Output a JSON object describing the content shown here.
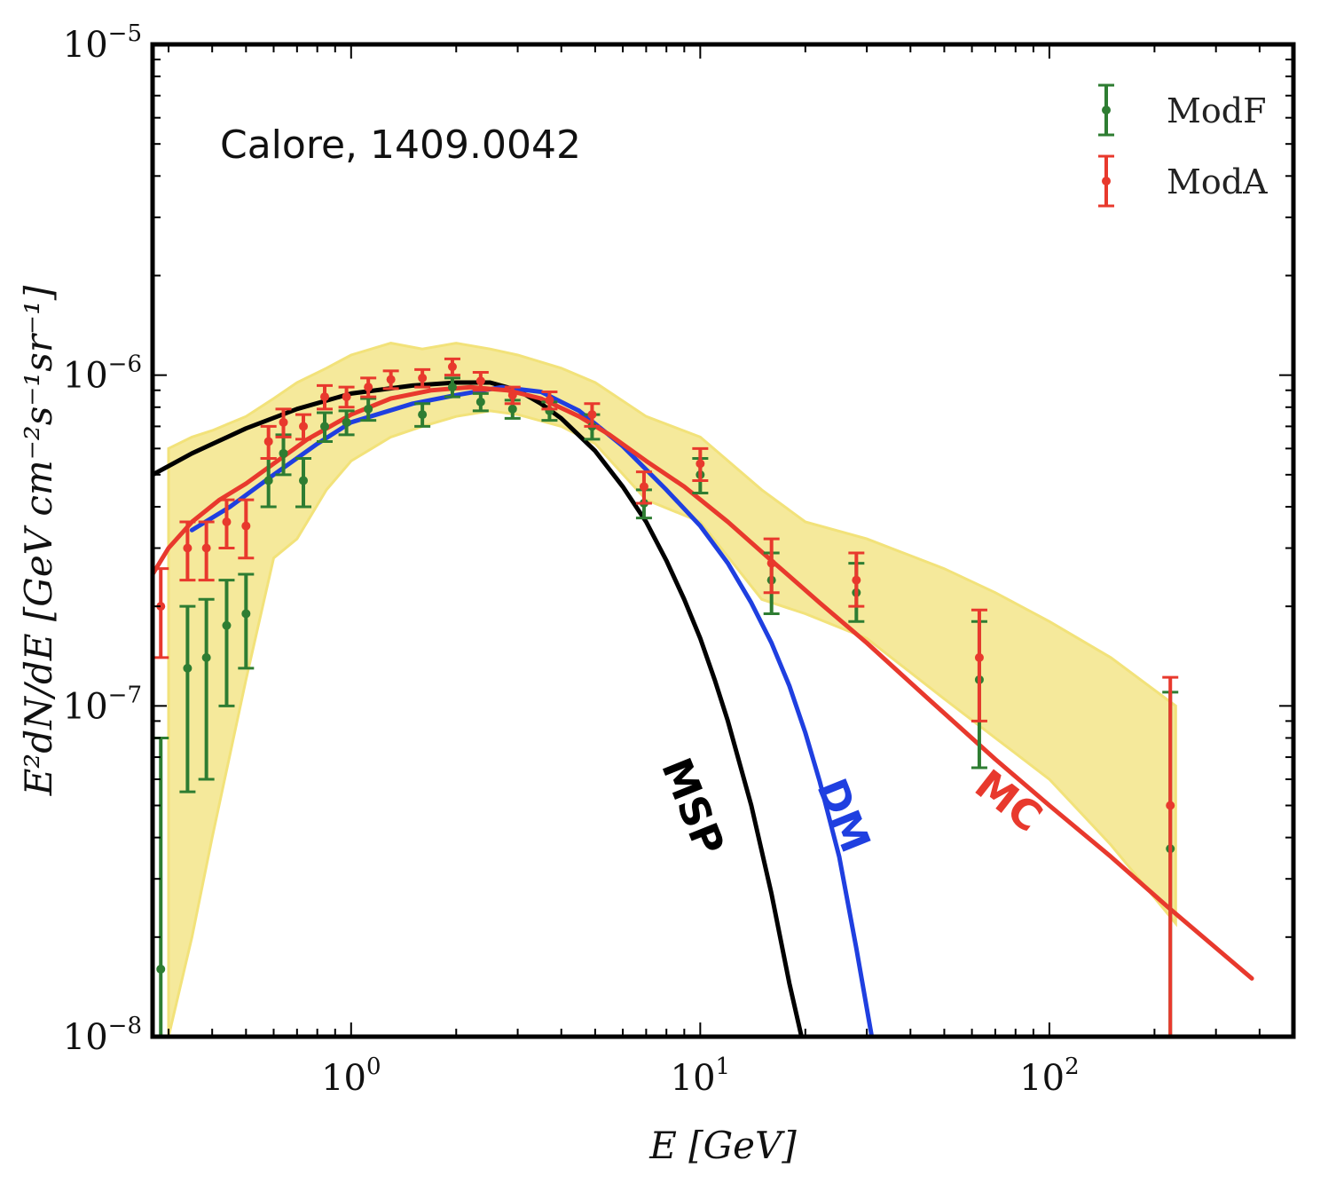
{
  "chart_data": {
    "type": "scatter",
    "title": "",
    "annotation": "Calore, 1409.0042",
    "xlabel": "E [GeV]",
    "ylabel": "E²dN/dE [GeV cm⁻²s⁻¹sr⁻¹]",
    "xscale": "log",
    "yscale": "log",
    "xlim": [
      0.27,
      500
    ],
    "ylim": [
      1e-08,
      1e-05
    ],
    "x_ticks": [
      {
        "value": 1,
        "base": "10",
        "exp": "0"
      },
      {
        "value": 10,
        "base": "10",
        "exp": "1"
      },
      {
        "value": 100,
        "base": "10",
        "exp": "2"
      }
    ],
    "y_ticks": [
      {
        "value": 1e-08,
        "base": "10",
        "exp": "−8"
      },
      {
        "value": 1e-07,
        "base": "10",
        "exp": "−7"
      },
      {
        "value": 1e-06,
        "base": "10",
        "exp": "−6"
      },
      {
        "value": 1e-05,
        "base": "10",
        "exp": "−5"
      }
    ],
    "legend": {
      "placement": "top-right",
      "entries": [
        {
          "label": "ModF",
          "color": "#2e7d32"
        },
        {
          "label": "ModA",
          "color": "#e8392d"
        }
      ]
    },
    "band_color": "#f2e27a",
    "band": {
      "x": [
        0.3,
        0.35,
        0.4,
        0.5,
        0.6,
        0.7,
        0.85,
        1.0,
        1.3,
        1.6,
        2.0,
        2.5,
        3.0,
        4.0,
        5.0,
        7.0,
        10,
        15,
        20,
        30,
        50,
        70,
        100,
        150,
        230
      ],
      "upper": [
        6e-07,
        6.5e-07,
        6.8e-07,
        7.5e-07,
        8.5e-07,
        9.5e-07,
        1.05e-06,
        1.15e-06,
        1.25e-06,
        1.2e-06,
        1.25e-06,
        1.2e-06,
        1.15e-06,
        1.05e-06,
        9.5e-07,
        7.5e-07,
        6.5e-07,
        4.5e-07,
        3.6e-07,
        3.2e-07,
        2.6e-07,
        2.2e-07,
        1.8e-07,
        1.4e-07,
        1e-07
      ],
      "lower": [
        1e-08,
        2e-08,
        4e-08,
        1.2e-07,
        2.8e-07,
        3.2e-07,
        4.5e-07,
        5.5e-07,
        6.5e-07,
        7e-07,
        7.5e-07,
        7.8e-07,
        7.6e-07,
        7e-07,
        6.2e-07,
        4.2e-07,
        3.6e-07,
        2.1e-07,
        1.9e-07,
        1.6e-07,
        1.05e-07,
        8e-08,
        6e-08,
        3.8e-08,
        2.2e-08
      ]
    },
    "series": [
      {
        "name": "ModF",
        "color": "#2e7d32",
        "points": [
          {
            "x": 0.285,
            "y": 1.6e-08,
            "lo": 1e-08,
            "hi": 8e-08
          },
          {
            "x": 0.34,
            "y": 1.3e-07,
            "lo": 5.5e-08,
            "hi": 2e-07
          },
          {
            "x": 0.385,
            "y": 1.4e-07,
            "lo": 6e-08,
            "hi": 2.1e-07
          },
          {
            "x": 0.44,
            "y": 1.75e-07,
            "lo": 1e-07,
            "hi": 2.4e-07
          },
          {
            "x": 0.5,
            "y": 1.9e-07,
            "lo": 1.3e-07,
            "hi": 2.5e-07
          },
          {
            "x": 0.58,
            "y": 4.8e-07,
            "lo": 4e-07,
            "hi": 5.6e-07
          },
          {
            "x": 0.64,
            "y": 5.8e-07,
            "lo": 5e-07,
            "hi": 6.6e-07
          },
          {
            "x": 0.73,
            "y": 4.8e-07,
            "lo": 4e-07,
            "hi": 5.6e-07
          },
          {
            "x": 0.84,
            "y": 7e-07,
            "lo": 6.3e-07,
            "hi": 7.7e-07
          },
          {
            "x": 0.97,
            "y": 7.2e-07,
            "lo": 6.6e-07,
            "hi": 7.8e-07
          },
          {
            "x": 1.12,
            "y": 7.9e-07,
            "lo": 7.3e-07,
            "hi": 8.5e-07
          },
          {
            "x": 1.6,
            "y": 7.6e-07,
            "lo": 7e-07,
            "hi": 8.2e-07
          },
          {
            "x": 1.95,
            "y": 9.2e-07,
            "lo": 8.6e-07,
            "hi": 9.8e-07
          },
          {
            "x": 2.35,
            "y": 8.3e-07,
            "lo": 7.8e-07,
            "hi": 8.8e-07
          },
          {
            "x": 2.9,
            "y": 7.9e-07,
            "lo": 7.4e-07,
            "hi": 8.4e-07
          },
          {
            "x": 3.7,
            "y": 7.8e-07,
            "lo": 7.3e-07,
            "hi": 8.3e-07
          },
          {
            "x": 4.9,
            "y": 7e-07,
            "lo": 6.4e-07,
            "hi": 7.6e-07
          },
          {
            "x": 6.9,
            "y": 4.1e-07,
            "lo": 3.7e-07,
            "hi": 4.5e-07
          },
          {
            "x": 10.0,
            "y": 5e-07,
            "lo": 4.4e-07,
            "hi": 5.6e-07
          },
          {
            "x": 16.0,
            "y": 2.4e-07,
            "lo": 1.9e-07,
            "hi": 2.9e-07
          },
          {
            "x": 28.0,
            "y": 2.2e-07,
            "lo": 1.8e-07,
            "hi": 2.7e-07
          },
          {
            "x": 63.0,
            "y": 1.2e-07,
            "lo": 6.5e-08,
            "hi": 1.8e-07
          },
          {
            "x": 222.0,
            "y": 3.7e-08,
            "lo": 1e-08,
            "hi": 1.1e-07
          }
        ]
      },
      {
        "name": "ModA",
        "color": "#e8392d",
        "points": [
          {
            "x": 0.285,
            "y": 2e-07,
            "lo": 1.4e-07,
            "hi": 2.6e-07
          },
          {
            "x": 0.34,
            "y": 3e-07,
            "lo": 2.4e-07,
            "hi": 3.6e-07
          },
          {
            "x": 0.385,
            "y": 3e-07,
            "lo": 2.4e-07,
            "hi": 3.6e-07
          },
          {
            "x": 0.44,
            "y": 3.6e-07,
            "lo": 3e-07,
            "hi": 4.2e-07
          },
          {
            "x": 0.5,
            "y": 3.5e-07,
            "lo": 2.8e-07,
            "hi": 4.2e-07
          },
          {
            "x": 0.58,
            "y": 6.3e-07,
            "lo": 5.6e-07,
            "hi": 7e-07
          },
          {
            "x": 0.64,
            "y": 7.2e-07,
            "lo": 6.5e-07,
            "hi": 7.9e-07
          },
          {
            "x": 0.73,
            "y": 7e-07,
            "lo": 6.4e-07,
            "hi": 7.6e-07
          },
          {
            "x": 0.84,
            "y": 8.6e-07,
            "lo": 7.9e-07,
            "hi": 9.3e-07
          },
          {
            "x": 0.97,
            "y": 8.6e-07,
            "lo": 8e-07,
            "hi": 9.2e-07
          },
          {
            "x": 1.12,
            "y": 9.2e-07,
            "lo": 8.6e-07,
            "hi": 9.8e-07
          },
          {
            "x": 1.3,
            "y": 9.7e-07,
            "lo": 9.1e-07,
            "hi": 1.03e-06
          },
          {
            "x": 1.6,
            "y": 9.8e-07,
            "lo": 9.2e-07,
            "hi": 1.04e-06
          },
          {
            "x": 1.95,
            "y": 1.06e-06,
            "lo": 1e-06,
            "hi": 1.12e-06
          },
          {
            "x": 2.35,
            "y": 9.6e-07,
            "lo": 9e-07,
            "hi": 1.02e-06
          },
          {
            "x": 2.9,
            "y": 8.7e-07,
            "lo": 8.2e-07,
            "hi": 9.2e-07
          },
          {
            "x": 3.7,
            "y": 8.4e-07,
            "lo": 7.9e-07,
            "hi": 8.9e-07
          },
          {
            "x": 4.9,
            "y": 7.6e-07,
            "lo": 7e-07,
            "hi": 8.2e-07
          },
          {
            "x": 6.9,
            "y": 4.6e-07,
            "lo": 4.1e-07,
            "hi": 5.1e-07
          },
          {
            "x": 10.0,
            "y": 5.4e-07,
            "lo": 4.8e-07,
            "hi": 6e-07
          },
          {
            "x": 16.0,
            "y": 2.7e-07,
            "lo": 2.2e-07,
            "hi": 3.2e-07
          },
          {
            "x": 28.0,
            "y": 2.4e-07,
            "lo": 2e-07,
            "hi": 2.9e-07
          },
          {
            "x": 63.0,
            "y": 1.4e-07,
            "lo": 9e-08,
            "hi": 1.95e-07
          },
          {
            "x": 222.0,
            "y": 5e-08,
            "lo": 1e-08,
            "hi": 1.22e-07
          }
        ]
      }
    ],
    "curves": [
      {
        "label": "MSP",
        "color": "#000000",
        "x": [
          0.27,
          0.35,
          0.5,
          0.7,
          1.0,
          1.5,
          2.0,
          2.5,
          3.0,
          3.5,
          4.0,
          5.0,
          6.0,
          7.0,
          8.0,
          9.0,
          10,
          11,
          12,
          14,
          16,
          18,
          19.5
        ],
        "y": [
          5e-07,
          5.8e-07,
          6.9e-07,
          7.9e-07,
          8.8e-07,
          9.3e-07,
          9.5e-07,
          9.5e-07,
          9e-07,
          8.2e-07,
          7.4e-07,
          5.9e-07,
          4.6e-07,
          3.6e-07,
          2.75e-07,
          2.1e-07,
          1.6e-07,
          1.2e-07,
          9e-08,
          5e-08,
          2.7e-08,
          1.45e-08,
          1e-08
        ]
      },
      {
        "label": "DM",
        "color": "#1f3fe0",
        "x": [
          0.35,
          0.45,
          0.6,
          0.8,
          1.0,
          1.5,
          2.0,
          2.7,
          3.5,
          4.5,
          6.0,
          8.0,
          10,
          12,
          14,
          16,
          18,
          20,
          22,
          25,
          28,
          31
        ],
        "y": [
          3.4e-07,
          4e-07,
          5e-07,
          6.2e-07,
          7.2e-07,
          8.2e-07,
          8.7e-07,
          9.2e-07,
          8.9e-07,
          7.8e-07,
          6.1e-07,
          4.5e-07,
          3.5e-07,
          2.7e-07,
          2.05e-07,
          1.55e-07,
          1.15e-07,
          8.3e-08,
          5.9e-08,
          3.5e-08,
          1.85e-08,
          1e-08
        ]
      },
      {
        "label": "MC",
        "color": "#e8392d",
        "x": [
          0.27,
          0.3,
          0.35,
          0.42,
          0.5,
          0.6,
          0.75,
          1.0,
          1.3,
          1.7,
          2.2,
          2.8,
          3.5,
          4.5,
          5.5,
          7.0,
          9.0,
          12,
          16,
          22,
          30,
          45,
          70,
          100,
          150,
          220,
          380
        ],
        "y": [
          2.5e-07,
          3e-07,
          3.6e-07,
          4.2e-07,
          4.7e-07,
          5.4e-07,
          6.4e-07,
          7.6e-07,
          8.5e-07,
          9e-07,
          9.2e-07,
          9e-07,
          8.5e-07,
          7.5e-07,
          6.6e-07,
          5.5e-07,
          4.6e-07,
          3.6e-07,
          2.75e-07,
          2.05e-07,
          1.55e-07,
          1.05e-07,
          6.9e-08,
          5e-08,
          3.5e-08,
          2.45e-08,
          1.5e-08
        ]
      }
    ]
  }
}
